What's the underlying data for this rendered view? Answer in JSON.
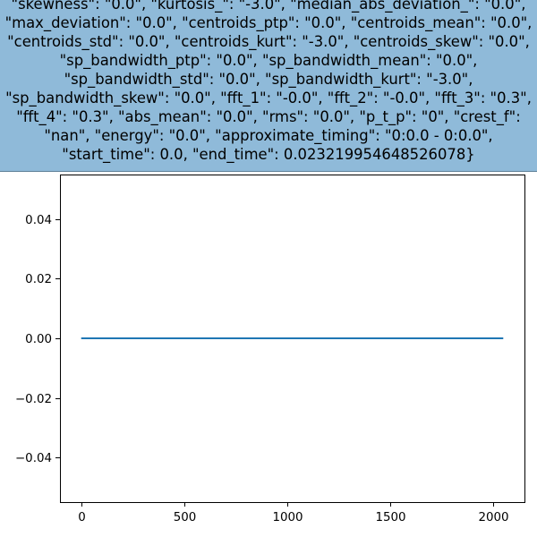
{
  "title_lines": [
    "\"skewness\": \"0.0\", \"kurtosis_\": \"-3.0\", \"median_abs_deviation_\": \"0.0\",",
    "\"max_deviation\": \"0.0\", \"centroids_ptp\": \"0.0\", \"centroids_mean\": \"0.0\",",
    "\"centroids_std\": \"0.0\", \"centroids_kurt\": \"-3.0\", \"centroids_skew\": \"0.0\",",
    "\"sp_bandwidth_ptp\": \"0.0\", \"sp_bandwidth_mean\": \"0.0\",",
    "\"sp_bandwidth_std\": \"0.0\", \"sp_bandwidth_kurt\": \"-3.0\",",
    "\"sp_bandwidth_skew\": \"0.0\", \"fft_1\": \"-0.0\", \"fft_2\": \"-0.0\", \"fft_3\": \"0.3\",",
    "\"fft_4\": \"0.3\", \"abs_mean\": \"0.0\", \"rms\": \"0.0\", \"p_t_p\": \"0\", \"crest_f\":",
    "\"nan\", \"energy\": \"0.0\", \"approximate_timing\": \"0:0.0 - 0:0.0\",",
    "\"start_time\": 0.0, \"end_time\": 0.023219954648526078}"
  ],
  "colors": {
    "title_background": "#8fbad9",
    "line": "#1f77b4"
  },
  "chart_data": {
    "type": "line",
    "title": "",
    "xlabel": "",
    "ylabel": "",
    "xlim": [
      -103,
      2150
    ],
    "ylim": [
      -0.055,
      0.055
    ],
    "x_ticks": [
      0,
      500,
      1000,
      1500,
      2000
    ],
    "x_tick_labels": [
      "0",
      "500",
      "1000",
      "1500",
      "2000"
    ],
    "y_ticks": [
      0.04,
      0.02,
      0.0,
      -0.02,
      -0.04
    ],
    "y_tick_labels": [
      "0.04",
      "0.02",
      "0.00",
      "−0.02",
      "−0.04"
    ],
    "grid": false,
    "series": [
      {
        "x": [
          0,
          2047
        ],
        "y": [
          0.0,
          0.0
        ]
      }
    ]
  }
}
